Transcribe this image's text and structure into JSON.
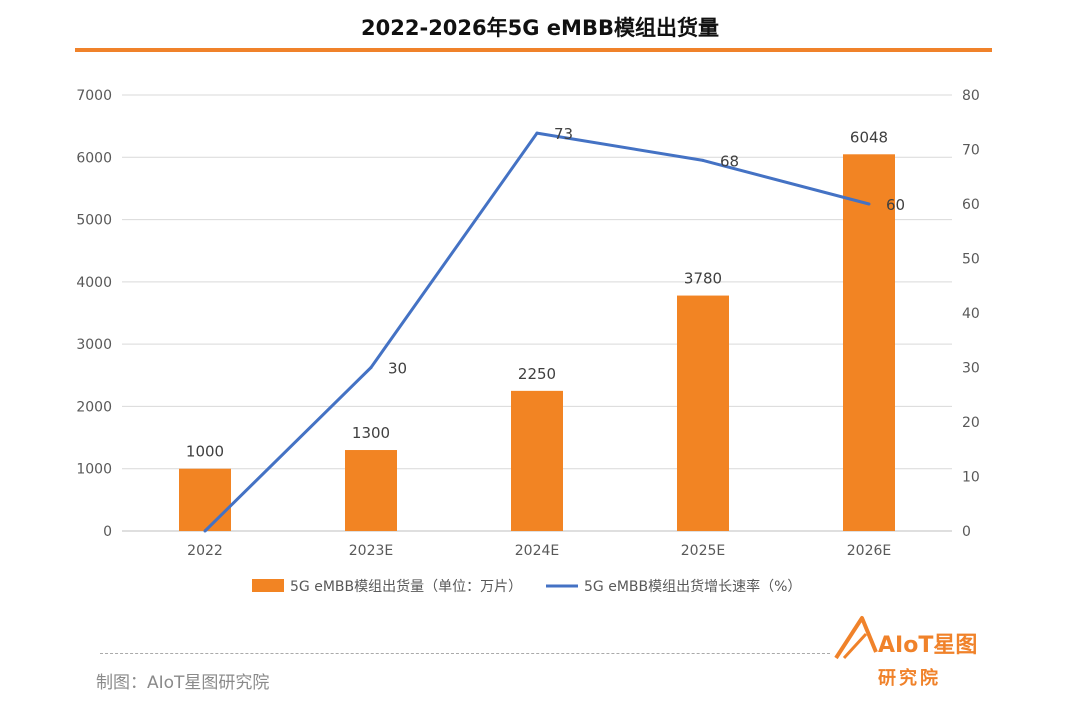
{
  "chart_data": {
    "type": "bar",
    "title": "2022-2026年5G eMBB模组出货量",
    "categories": [
      "2022",
      "2023E",
      "2024E",
      "2025E",
      "2026E"
    ],
    "series": [
      {
        "name": "5G eMBB模组出货量（单位：万片）",
        "type": "bar",
        "axis": "left",
        "color": "#f28423",
        "values": [
          1000,
          1300,
          2250,
          3780,
          6048
        ]
      },
      {
        "name": "5G eMBB模组出货增长速率（%）",
        "type": "line",
        "axis": "right",
        "color": "#4472c4",
        "values": [
          0,
          30,
          73,
          68,
          60
        ]
      }
    ],
    "ylim": [
      0,
      7000
    ],
    "yticks": [
      "0",
      "1000",
      "2000",
      "3000",
      "4000",
      "5000",
      "6000",
      "7000"
    ],
    "y2lim": [
      0,
      80
    ],
    "y2ticks": [
      "0",
      "10",
      "20",
      "30",
      "40",
      "50",
      "60",
      "70",
      "80"
    ],
    "bar_labels": [
      "1000",
      "1300",
      "2250",
      "3780",
      "6048"
    ],
    "line_labels": [
      "",
      "30",
      "73",
      "68",
      "60"
    ],
    "grid": true,
    "legend_position": "bottom"
  },
  "footer": {
    "credit": "制图：AIoT星图研究院",
    "logo_text": "AIoT星图",
    "logo_sub": "研究院"
  }
}
